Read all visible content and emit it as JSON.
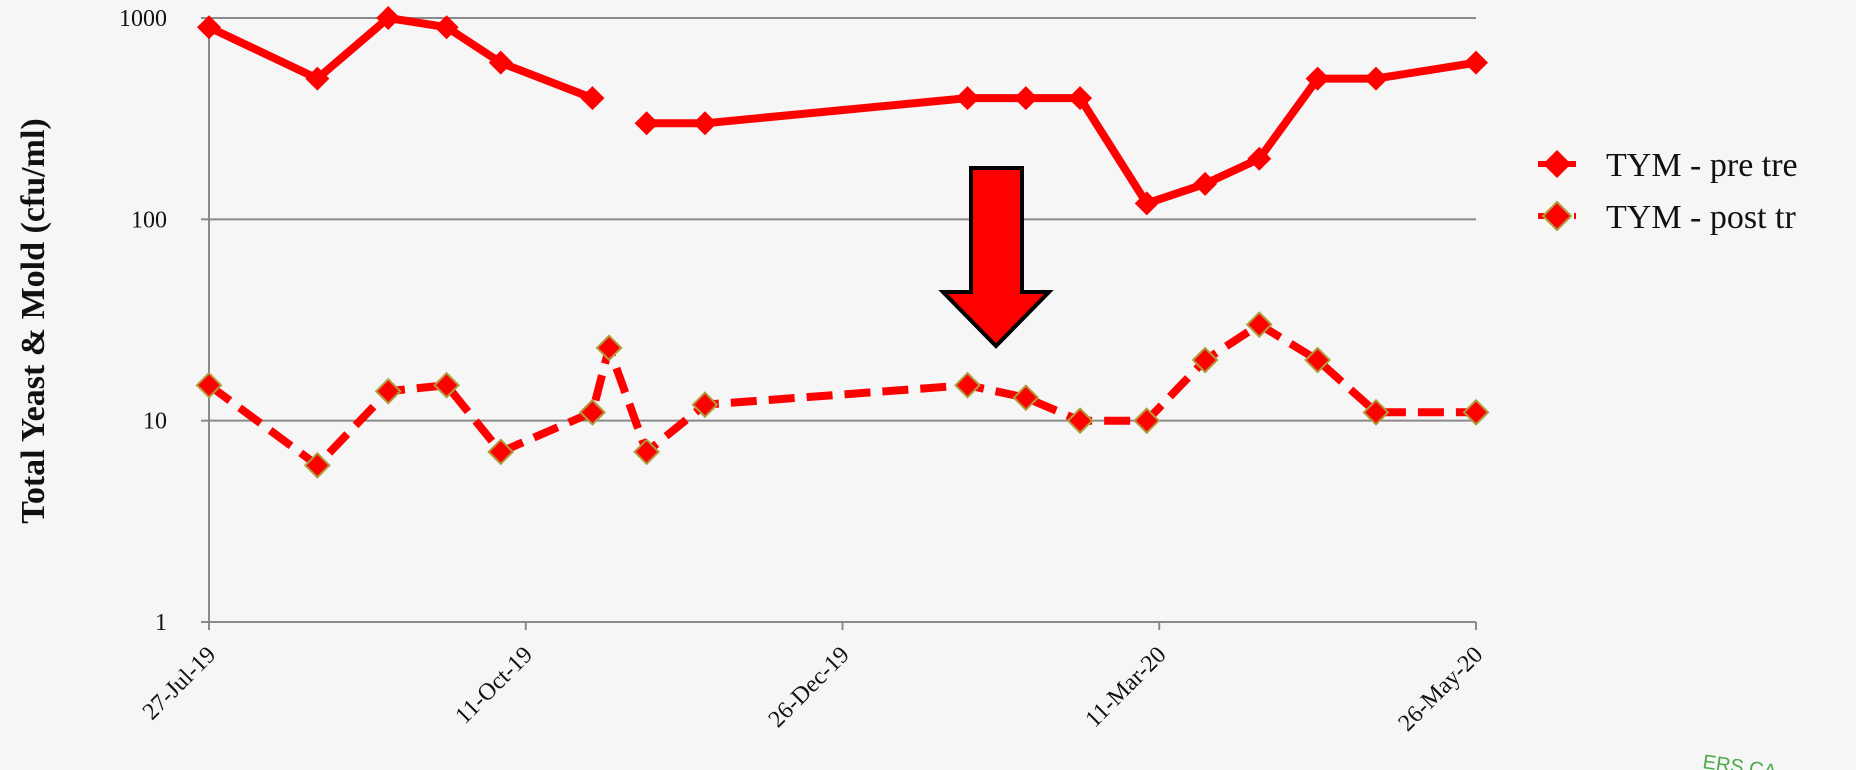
{
  "chart_data": {
    "type": "line",
    "title": "",
    "xlabel": "",
    "ylabel": "Total Yeast & Mold (cfu/ml)",
    "y_scale": "log",
    "ylim": [
      1,
      1000
    ],
    "y_ticks": [
      "1",
      "10",
      "100",
      "1000"
    ],
    "xlim": [
      "2019-07-27",
      "2020-05-26"
    ],
    "x_tick_labels": [
      {
        "date": "2019-07-27",
        "label": "27-Jul-19"
      },
      {
        "date": "2019-10-11",
        "label": "11-Oct-19"
      },
      {
        "date": "2019-12-26",
        "label": "26-Dec-19"
      },
      {
        "date": "2020-03-11",
        "label": "11-Mar-20"
      },
      {
        "date": "2020-05-26",
        "label": "26-May-20"
      }
    ],
    "grid": "horizontal",
    "legend": "right",
    "series": [
      {
        "name": "TYM - pre tre",
        "style": "solid",
        "color": "#ff0000",
        "segments": [
          [
            {
              "x": "2019-07-27",
              "y": 900
            },
            {
              "x": "2019-08-22",
              "y": 500
            },
            {
              "x": "2019-09-08",
              "y": 1000
            },
            {
              "x": "2019-09-22",
              "y": 900
            },
            {
              "x": "2019-10-05",
              "y": 600
            },
            {
              "x": "2019-10-27",
              "y": 400
            }
          ],
          [
            {
              "x": "2019-11-09",
              "y": 300
            },
            {
              "x": "2019-11-23",
              "y": 300
            },
            {
              "x": "2020-01-25",
              "y": 400
            },
            {
              "x": "2020-02-08",
              "y": 400
            },
            {
              "x": "2020-02-21",
              "y": 400
            },
            {
              "x": "2020-03-08",
              "y": 120
            },
            {
              "x": "2020-03-22",
              "y": 150
            },
            {
              "x": "2020-04-04",
              "y": 200
            },
            {
              "x": "2020-04-18",
              "y": 500
            },
            {
              "x": "2020-05-02",
              "y": 500
            },
            {
              "x": "2020-05-26",
              "y": 600
            }
          ]
        ]
      },
      {
        "name": "TYM - post tr",
        "style": "dashed",
        "color": "#ff0000",
        "marker_edge": "#b09a3a",
        "segments": [
          [
            {
              "x": "2019-07-27",
              "y": 15
            },
            {
              "x": "2019-08-22",
              "y": 6
            },
            {
              "x": "2019-09-08",
              "y": 14
            },
            {
              "x": "2019-09-22",
              "y": 15
            },
            {
              "x": "2019-10-05",
              "y": 7
            },
            {
              "x": "2019-10-27",
              "y": 11
            },
            {
              "x": "2019-10-27",
              "y": 11
            },
            {
              "x": "2019-10-31",
              "y": 23
            },
            {
              "x": "2019-11-09",
              "y": 7
            },
            {
              "x": "2019-11-23",
              "y": 12
            },
            {
              "x": "2020-01-25",
              "y": 15
            },
            {
              "x": "2020-02-08",
              "y": 13
            },
            {
              "x": "2020-02-21",
              "y": 10
            },
            {
              "x": "2020-03-08",
              "y": 10
            },
            {
              "x": "2020-03-22",
              "y": 20
            },
            {
              "x": "2020-04-04",
              "y": 30
            },
            {
              "x": "2020-04-18",
              "y": 20
            },
            {
              "x": "2020-05-02",
              "y": 11
            },
            {
              "x": "2020-05-26",
              "y": 11
            }
          ]
        ]
      }
    ],
    "annotation": {
      "type": "down-arrow",
      "color": "#ff0000",
      "outline": "#000000"
    }
  },
  "stamp": {
    "text": "ERS CA",
    "color": "#4caa4a"
  },
  "colors": {
    "accent": "#ff0000",
    "grid": "#8a8a8a",
    "axis": "#8a8a8a"
  }
}
